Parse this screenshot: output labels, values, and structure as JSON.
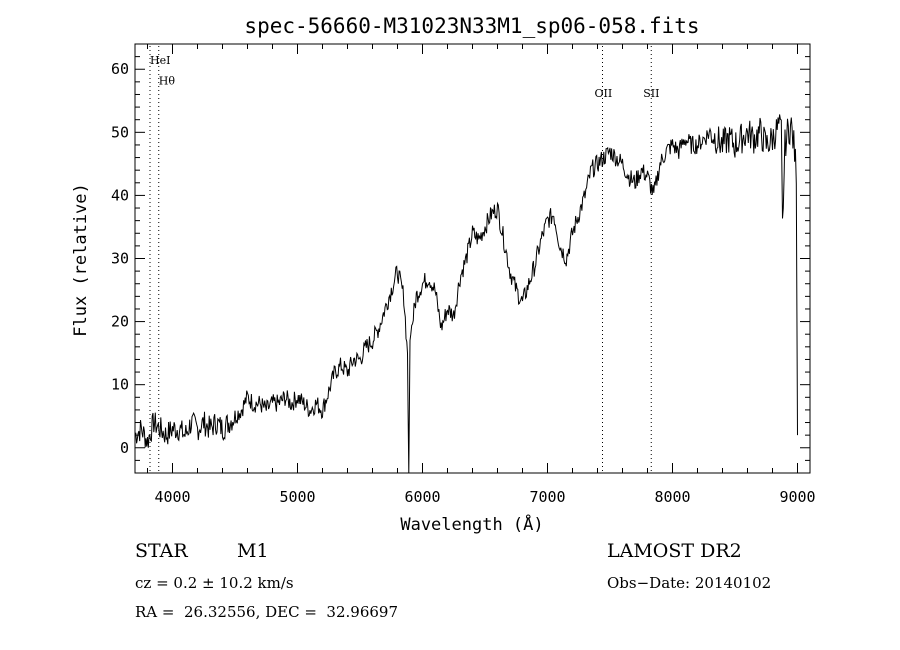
{
  "chart_data": {
    "type": "line",
    "title": "spec-56660-M31023N33M1_sp06-058.fits",
    "xlabel": "Wavelength (Å)",
    "ylabel": "Flux (relative)",
    "xlim": [
      3700,
      9100
    ],
    "ylim": [
      -4,
      64
    ],
    "xticks": [
      4000,
      5000,
      6000,
      7000,
      8000,
      9000
    ],
    "yticks": [
      0,
      10,
      20,
      30,
      40,
      50,
      60
    ],
    "grid": false,
    "line_color": "#000000",
    "series": [
      {
        "x": [
          3700,
          3750,
          3800,
          3850,
          3900,
          3950,
          4000,
          4050,
          4100,
          4150,
          4200,
          4250,
          4300,
          4350,
          4400,
          4450,
          4500,
          4550,
          4600,
          4650,
          4700,
          4750,
          4800,
          4850,
          4900,
          4950,
          5000,
          5050,
          5100,
          5150,
          5200,
          5250,
          5300,
          5350,
          5400,
          5450,
          5500,
          5550,
          5600,
          5650,
          5700,
          5750,
          5800,
          5850,
          5880,
          5890,
          5900,
          5920,
          5950,
          6000,
          6050,
          6100,
          6150,
          6200,
          6250,
          6300,
          6350,
          6400,
          6450,
          6500,
          6550,
          6600,
          6650,
          6700,
          6750,
          6800,
          6850,
          6900,
          6950,
          7000,
          7050,
          7100,
          7150,
          7200,
          7250,
          7300,
          7350,
          7400,
          7450,
          7500,
          7550,
          7600,
          7650,
          7700,
          7750,
          7800,
          7850,
          7900,
          7950,
          8000,
          8050,
          8100,
          8150,
          8200,
          8250,
          8300,
          8350,
          8400,
          8450,
          8500,
          8550,
          8600,
          8650,
          8700,
          8750,
          8800,
          8850,
          8870,
          8880,
          8900,
          8920,
          8950,
          8970,
          8990,
          9000
        ],
        "y": [
          2,
          3,
          1,
          4,
          3,
          2,
          3,
          3,
          2,
          4,
          3,
          4,
          3,
          4,
          3,
          4,
          5,
          6,
          8,
          7,
          7,
          6,
          7,
          7,
          8,
          7,
          8,
          7,
          6,
          7,
          6,
          9,
          12,
          13,
          12,
          14,
          14,
          16,
          17,
          19,
          22,
          25,
          28,
          24,
          15,
          -4,
          17,
          20,
          24,
          26,
          27,
          25,
          19,
          22,
          21,
          27,
          30,
          34,
          33,
          35,
          37,
          38,
          33,
          28,
          25,
          23,
          26,
          29,
          33,
          36,
          37,
          32,
          30,
          34,
          37,
          40,
          44,
          45,
          46,
          47,
          46,
          45,
          43,
          42,
          44,
          43,
          40,
          45,
          47,
          48,
          47,
          49,
          48,
          48,
          49,
          50,
          49,
          48,
          49,
          48,
          49,
          50,
          49,
          50,
          48,
          49,
          51,
          50,
          35,
          48,
          50,
          51,
          48,
          44,
          2
        ]
      }
    ],
    "line_annotations": [
      {
        "label": "HeI",
        "x": 3820,
        "y": 60.8,
        "dotted": true
      },
      {
        "label": "Hθ",
        "x": 3890,
        "y": 57.6,
        "dotted": true
      },
      {
        "label": "OII",
        "x": 7440,
        "y": 55.6,
        "dotted": true
      },
      {
        "label": "SII",
        "x": 7830,
        "y": 55.6,
        "dotted": true
      }
    ]
  },
  "info": {
    "object_class": "STAR",
    "subclass": "M1",
    "survey": "LAMOST DR2",
    "redshift": "cz = 0.2 ± 10.2 km/s",
    "obs_date": "Obs−Date: 20140102",
    "coords": "RA =  26.32556, DEC =  32.96697"
  }
}
